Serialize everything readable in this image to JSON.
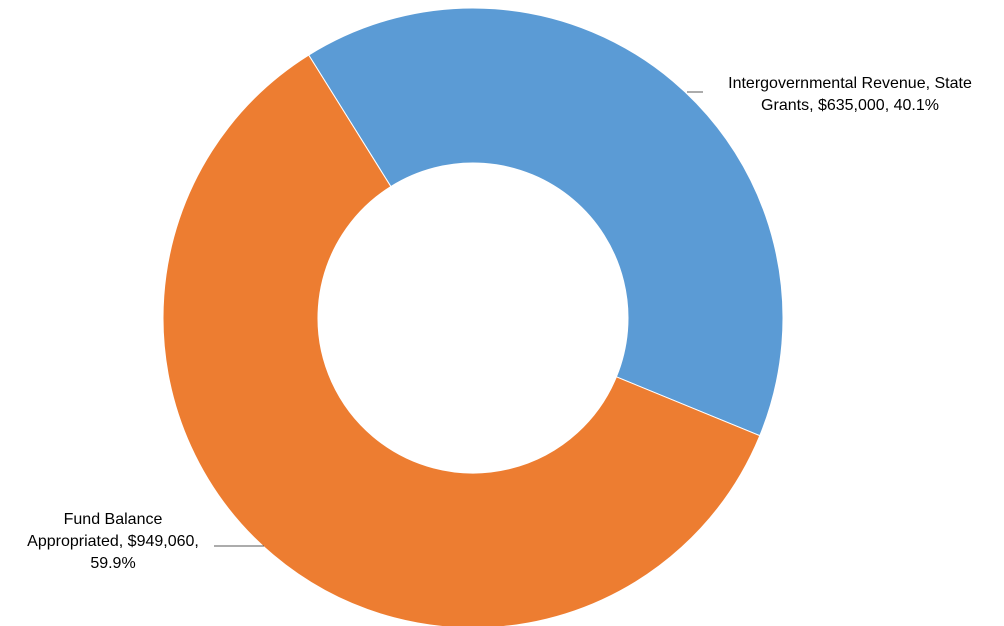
{
  "chart_data": {
    "type": "pie",
    "variant": "donut",
    "categories": [
      "Intergovernmental Revenue, State Grants",
      "Fund Balance Appropriated"
    ],
    "values": [
      635000,
      949060
    ],
    "percentages": [
      40.1,
      59.9
    ],
    "colors": [
      "#5B9BD5",
      "#ED7D31"
    ],
    "data_labels": [
      [
        "Intergovernmental Revenue, State",
        "Grants, $635,000,  40.1%"
      ],
      [
        "Fund Balance",
        "Appropriated, $949,060,",
        "59.9%"
      ]
    ],
    "legend": "none"
  }
}
